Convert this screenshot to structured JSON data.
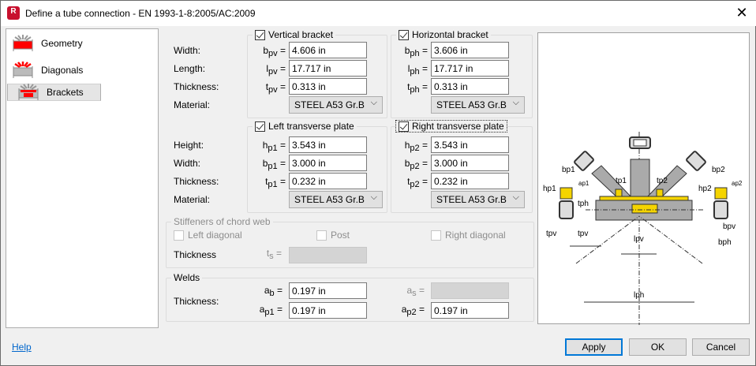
{
  "window": {
    "title": "Define a tube connection - EN 1993-1-8:2005/AC:2009",
    "app_icon_letter": "R",
    "close": "✕"
  },
  "nav": {
    "items": [
      {
        "label": "Geometry"
      },
      {
        "label": "Diagonals"
      },
      {
        "label": "Brackets",
        "selected": true
      }
    ]
  },
  "vertical_bracket": {
    "title": "Vertical bracket",
    "checked": true,
    "labels": {
      "width": "Width:",
      "length": "Length:",
      "thickness": "Thickness:",
      "material": "Material:"
    },
    "width": {
      "sym": "b",
      "sub": "pv",
      "value": "4.606 in"
    },
    "length": {
      "sym": "l",
      "sub": "pv",
      "value": "17.717 in"
    },
    "thickness": {
      "sym": "t",
      "sub": "pv",
      "value": "0.313 in"
    },
    "material": "STEEL A53 Gr.B"
  },
  "horizontal_bracket": {
    "title": "Horizontal bracket",
    "checked": true,
    "width": {
      "sym": "b",
      "sub": "ph",
      "value": "3.606 in"
    },
    "length": {
      "sym": "l",
      "sub": "ph",
      "value": "17.717 in"
    },
    "thickness": {
      "sym": "t",
      "sub": "ph",
      "value": "0.313 in"
    },
    "material": "STEEL A53 Gr.B"
  },
  "left_plate": {
    "title": "Left transverse plate",
    "checked": true,
    "labels": {
      "height": "Height:",
      "width": "Width:",
      "thickness": "Thickness:",
      "material": "Material:"
    },
    "height": {
      "sym": "h",
      "sub": "p1",
      "value": "3.543 in"
    },
    "width": {
      "sym": "b",
      "sub": "p1",
      "value": "3.000 in"
    },
    "thickness": {
      "sym": "t",
      "sub": "p1",
      "value": "0.232 in"
    },
    "material": "STEEL A53 Gr.B"
  },
  "right_plate": {
    "title": "Right transverse plate",
    "checked": true,
    "height": {
      "sym": "h",
      "sub": "p2",
      "value": "3.543 in"
    },
    "width": {
      "sym": "b",
      "sub": "p2",
      "value": "3.000 in"
    },
    "thickness": {
      "sym": "t",
      "sub": "p2",
      "value": "0.232 in"
    },
    "material": "STEEL A53 Gr.B"
  },
  "stiffeners": {
    "title": "Stiffeners of chord web",
    "left": "Left diagonal",
    "post": "Post",
    "right": "Right diagonal",
    "thickness_label": "Thickness",
    "sym": "t",
    "sub": "s",
    "value": ""
  },
  "welds": {
    "title": "Welds",
    "thickness_label": "Thickness:",
    "ab": {
      "sym": "a",
      "sub": "b",
      "value": "0.197 in"
    },
    "as": {
      "sym": "a",
      "sub": "s",
      "value": ""
    },
    "ap1": {
      "sym": "a",
      "sub": "p1",
      "value": "0.197 in"
    },
    "ap2": {
      "sym": "a",
      "sub": "p2",
      "value": "0.197 in"
    }
  },
  "diagram": {
    "labels": {
      "bp1": "bp1",
      "hp1": "hp1",
      "ap1": "ap1",
      "tp1": "tp1",
      "tp2": "tp2",
      "bp2": "bp2",
      "hp2": "hp2",
      "ap2": "ap2",
      "tph": "tph",
      "tpv_l": "tpv",
      "tpv_r": "tpv",
      "bpv": "bpv",
      "bph": "bph",
      "lpv": "lpv",
      "lph": "lph"
    },
    "colors": {
      "plate": "#f5d400",
      "steel": "#b0b0b0"
    }
  },
  "footer": {
    "help": "Help",
    "apply": "Apply",
    "ok": "OK",
    "cancel": "Cancel"
  }
}
